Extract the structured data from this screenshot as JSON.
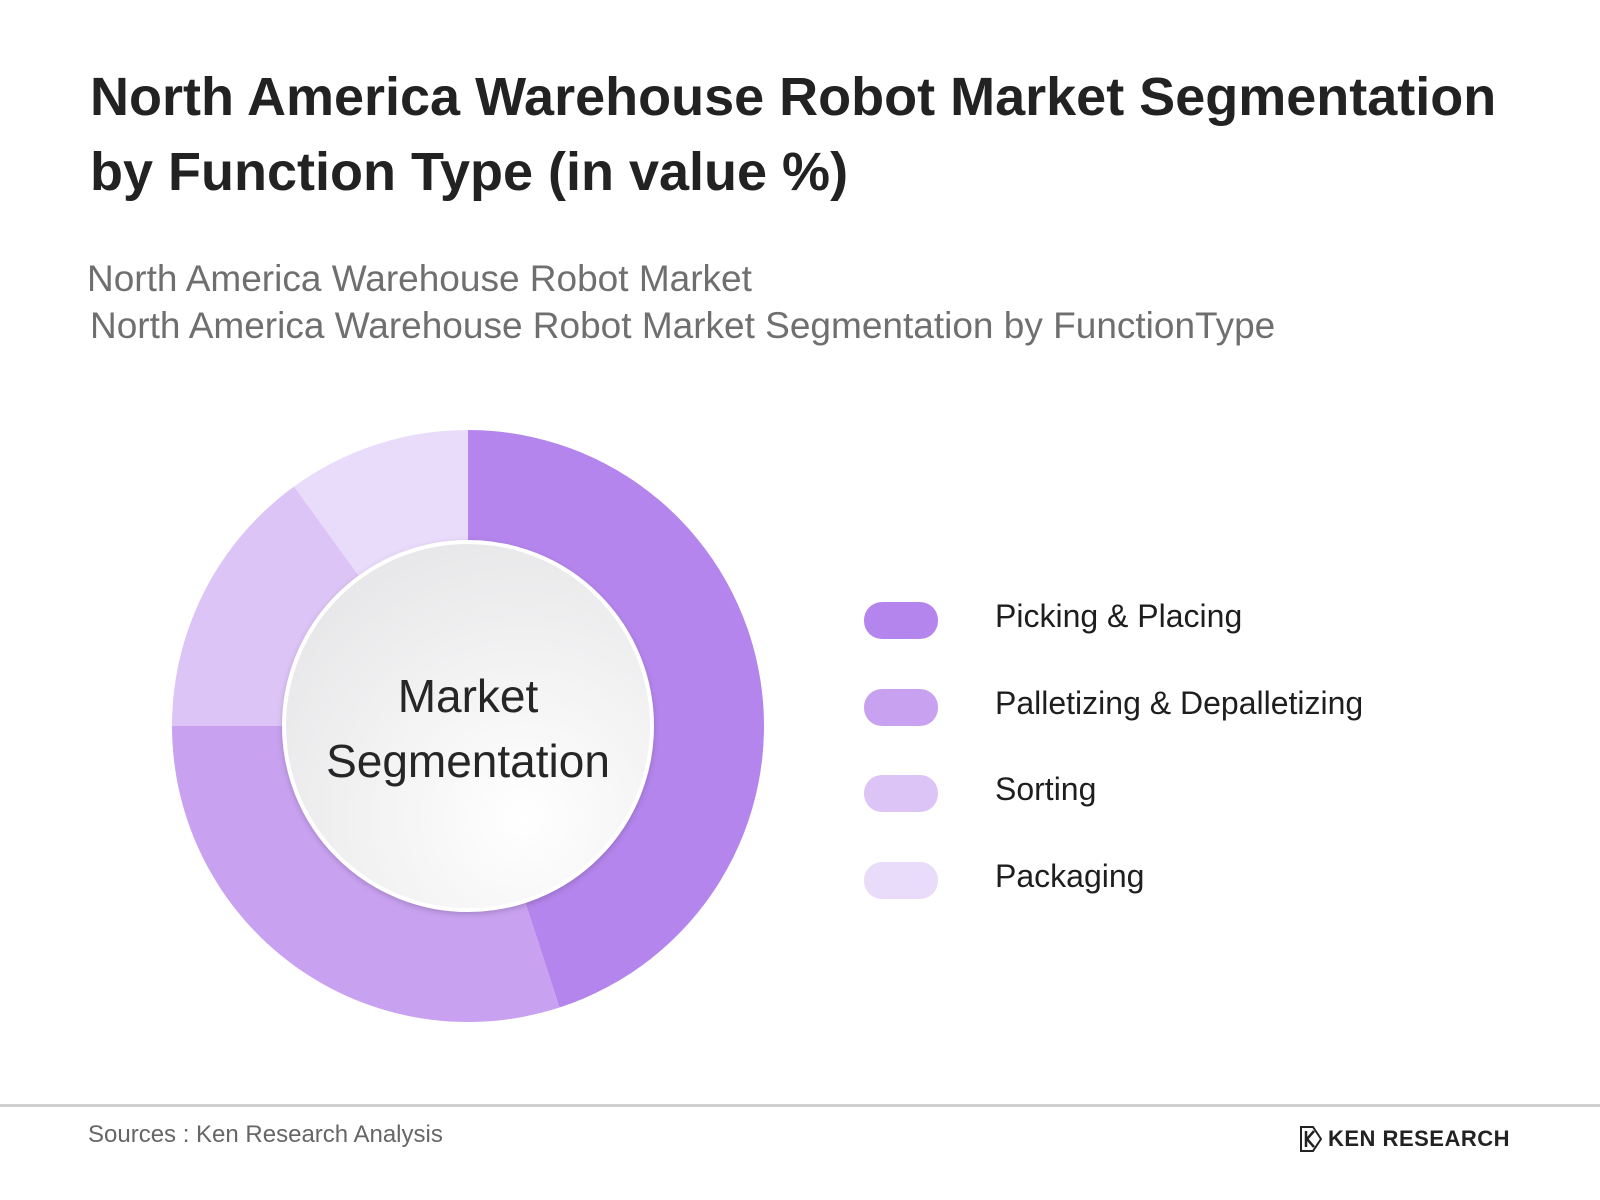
{
  "title": "North America Warehouse Robot Market Segmentation by Function Type (in value %)",
  "subtitle_1": "North America Warehouse Robot Market",
  "subtitle_2": "North America Warehouse Robot Market Segmentation by FunctionType",
  "center_label_line1": "Market",
  "center_label_line2": "Segmentation",
  "source": "Sources : Ken Research Analysis",
  "logo_text": "KEN RESEARCH",
  "logo_icon": "ken-research-logo-icon",
  "chart_data": {
    "type": "pie",
    "categories": [
      "Picking & Placing",
      "Palletizing & Depalletizing",
      "Sorting",
      "Packaging"
    ],
    "values": [
      45,
      30,
      15,
      10
    ],
    "colors": [
      "#b485ec",
      "#c8a1f0",
      "#ddc4f6",
      "#e9dbfa"
    ],
    "legend_position": "right"
  }
}
